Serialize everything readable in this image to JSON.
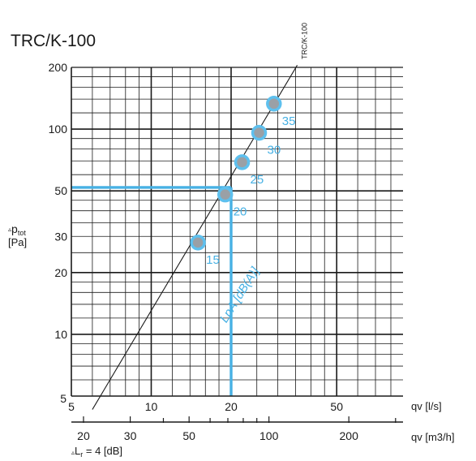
{
  "chart_data": {
    "type": "line",
    "title": "TRC/K-100",
    "fan_curve_label": "TRC/K-100",
    "y_label": {
      "delta": "▵",
      "symbol": "p",
      "subscript": "tot",
      "unit": "[Pa]"
    },
    "x_label_ls": "qv [l/s]",
    "x_label_m3h": "qv [m3/h]",
    "footnote": {
      "delta": "▵",
      "text_a": "L",
      "subscript": "r",
      "text_b": " = 4 [dB]"
    },
    "noise_label": "LpA [dB(A)]",
    "y_scale": "log",
    "x_scale": "log",
    "ylim": [
      5,
      200
    ],
    "xlim_ls": [
      5,
      100
    ],
    "y_ticks": [
      "5",
      "10",
      "20",
      "30",
      "50",
      "100",
      "200"
    ],
    "x_ticks_ls": [
      "5",
      "10",
      "20",
      "50"
    ],
    "x_ticks_m3h": [
      "20",
      "30",
      "50",
      "100",
      "200"
    ],
    "series": [
      {
        "name": "TRC/K-100",
        "x": [
          6,
          35.5
        ],
        "y": [
          4.3,
          205
        ]
      }
    ],
    "noise_points": [
      {
        "x": 15,
        "y": 28,
        "label": "15"
      },
      {
        "x": 19,
        "y": 48,
        "label": "20"
      },
      {
        "x": 22,
        "y": 69,
        "label": "25"
      },
      {
        "x": 25.5,
        "y": 96,
        "label": "30"
      },
      {
        "x": 29,
        "y": 133,
        "label": "35"
      }
    ],
    "example_lines": {
      "x": 20,
      "y": 52
    },
    "colors": {
      "accent": "#47b1e4",
      "marker_fill": "#9aa0a6",
      "marker_ring": "#5ec0ee",
      "ink": "#1a1a1a"
    },
    "grid": true
  }
}
